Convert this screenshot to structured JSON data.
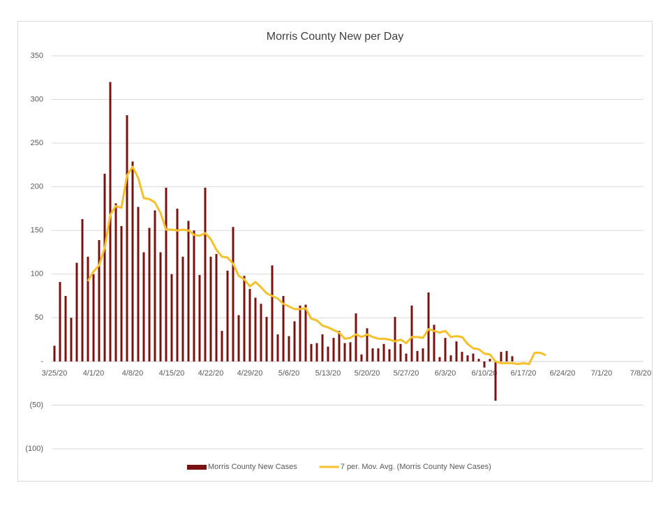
{
  "chart_data": {
    "type": "bar-line",
    "title": "Morris County New per Day",
    "categories": [
      "3/25/20",
      null,
      null,
      null,
      null,
      null,
      null,
      "4/1/20",
      null,
      null,
      null,
      null,
      null,
      null,
      "4/8/20",
      null,
      null,
      null,
      null,
      null,
      null,
      "4/15/20",
      null,
      null,
      null,
      null,
      null,
      null,
      "4/22/20",
      null,
      null,
      null,
      null,
      null,
      null,
      "4/29/20",
      null,
      null,
      null,
      null,
      null,
      null,
      "5/6/20",
      null,
      null,
      null,
      null,
      null,
      null,
      "5/13/20",
      null,
      null,
      null,
      null,
      null,
      null,
      "5/20/20",
      null,
      null,
      null,
      null,
      null,
      null,
      "5/27/20",
      null,
      null,
      null,
      null,
      null,
      null,
      "6/3/20",
      null,
      null,
      null,
      null,
      null,
      null,
      "6/10/20",
      null,
      null,
      null,
      null,
      null,
      null,
      "6/17/20",
      null,
      null,
      null,
      null,
      null,
      null,
      "6/24/20",
      null,
      null,
      null,
      null,
      null,
      null,
      "7/1/20",
      null,
      null,
      null,
      null,
      null,
      null,
      "7/8/20"
    ],
    "series": [
      {
        "name": "Morris County New Cases",
        "kind": "bar",
        "color": "#7b1010",
        "values": [
          18,
          91,
          75,
          50,
          113,
          163,
          120,
          100,
          139,
          215,
          320,
          181,
          155,
          282,
          229,
          177,
          125,
          153,
          173,
          125,
          199,
          100,
          175,
          120,
          161,
          150,
          99,
          199,
          120,
          123,
          35,
          104,
          154,
          53,
          98,
          83,
          73,
          66,
          51,
          110,
          31,
          75,
          29,
          46,
          64,
          65,
          20,
          21,
          31,
          17,
          27,
          35,
          21,
          22,
          55,
          8,
          38,
          15,
          15,
          20,
          14,
          51,
          20,
          9,
          64,
          12,
          15,
          79,
          42,
          5,
          27,
          7,
          23,
          11,
          7,
          9,
          3,
          -7,
          3,
          -45,
          11,
          12,
          6,
          null,
          null,
          null,
          null,
          null,
          null,
          null,
          null,
          null,
          null,
          null,
          null,
          null,
          null,
          null,
          null,
          null,
          null,
          null,
          null,
          null,
          null,
          null
        ]
      },
      {
        "name": "7 per. Mov. Avg. (Morris County New Cases)",
        "kind": "line",
        "color": "#f5c02a",
        "values": [
          null,
          null,
          null,
          null,
          null,
          null,
          92,
          103,
          110,
          130,
          168,
          178,
          176,
          213,
          223,
          210,
          187,
          186,
          182,
          170,
          151,
          151,
          150,
          151,
          150,
          145,
          144,
          147,
          140,
          128,
          120,
          119,
          112,
          98,
          94,
          86,
          91,
          85,
          78,
          75,
          72,
          66,
          63,
          60,
          60,
          61,
          49,
          47,
          41,
          39,
          36,
          33,
          26,
          27,
          31,
          28,
          31,
          28,
          26,
          26,
          25,
          23,
          25,
          21,
          28,
          28,
          27,
          37,
          35,
          33,
          35,
          28,
          29,
          28,
          20,
          15,
          14,
          9,
          8,
          0,
          -2,
          -2,
          -2,
          -3,
          -2,
          -3,
          10,
          10,
          7,
          null,
          null,
          null,
          null,
          null,
          null,
          null,
          null,
          null,
          null,
          null,
          null,
          null,
          null,
          null,
          null,
          null
        ]
      }
    ],
    "ylim": [
      -100,
      350
    ],
    "yticks": [
      {
        "value": -100,
        "label": "(100)"
      },
      {
        "value": -50,
        "label": "(50)"
      },
      {
        "value": 0,
        "label": "-"
      },
      50,
      100,
      150,
      200,
      250,
      300,
      350
    ],
    "grid": true,
    "legend": "bottom"
  }
}
